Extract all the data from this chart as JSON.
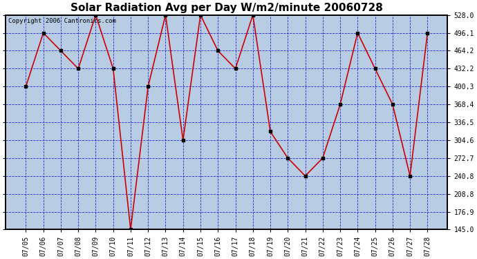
{
  "title": "Solar Radiation Avg per Day W/m2/minute 20060728",
  "copyright": "Copyright 2006 Cantronics.com",
  "dates": [
    "07/05",
    "07/06",
    "07/07",
    "07/08",
    "07/09",
    "07/10",
    "07/11",
    "07/12",
    "07/13",
    "07/14",
    "07/15",
    "07/16",
    "07/17",
    "07/18",
    "07/19",
    "07/20",
    "07/21",
    "07/22",
    "07/23",
    "07/24",
    "07/25",
    "07/26",
    "07/27",
    "07/28"
  ],
  "values": [
    400.3,
    496.1,
    464.2,
    432.2,
    528.0,
    432.2,
    145.0,
    400.3,
    528.0,
    304.6,
    528.0,
    464.2,
    432.2,
    528.0,
    320.0,
    272.7,
    240.8,
    272.7,
    368.4,
    496.1,
    432.2,
    368.4,
    240.8,
    496.1
  ],
  "line_color": "#cc0000",
  "marker_color": "#000000",
  "bg_color": "#ffffff",
  "plot_bg_color": "#b8cce4",
  "grid_color": "#0000cc",
  "ymin": 145.0,
  "ymax": 528.0,
  "yticks": [
    145.0,
    176.9,
    208.8,
    240.8,
    272.7,
    304.6,
    336.5,
    368.4,
    400.3,
    432.2,
    464.2,
    496.1,
    528.0
  ],
  "title_fontsize": 11,
  "copyright_fontsize": 6.5,
  "tick_fontsize": 7,
  "border_color": "#000000"
}
